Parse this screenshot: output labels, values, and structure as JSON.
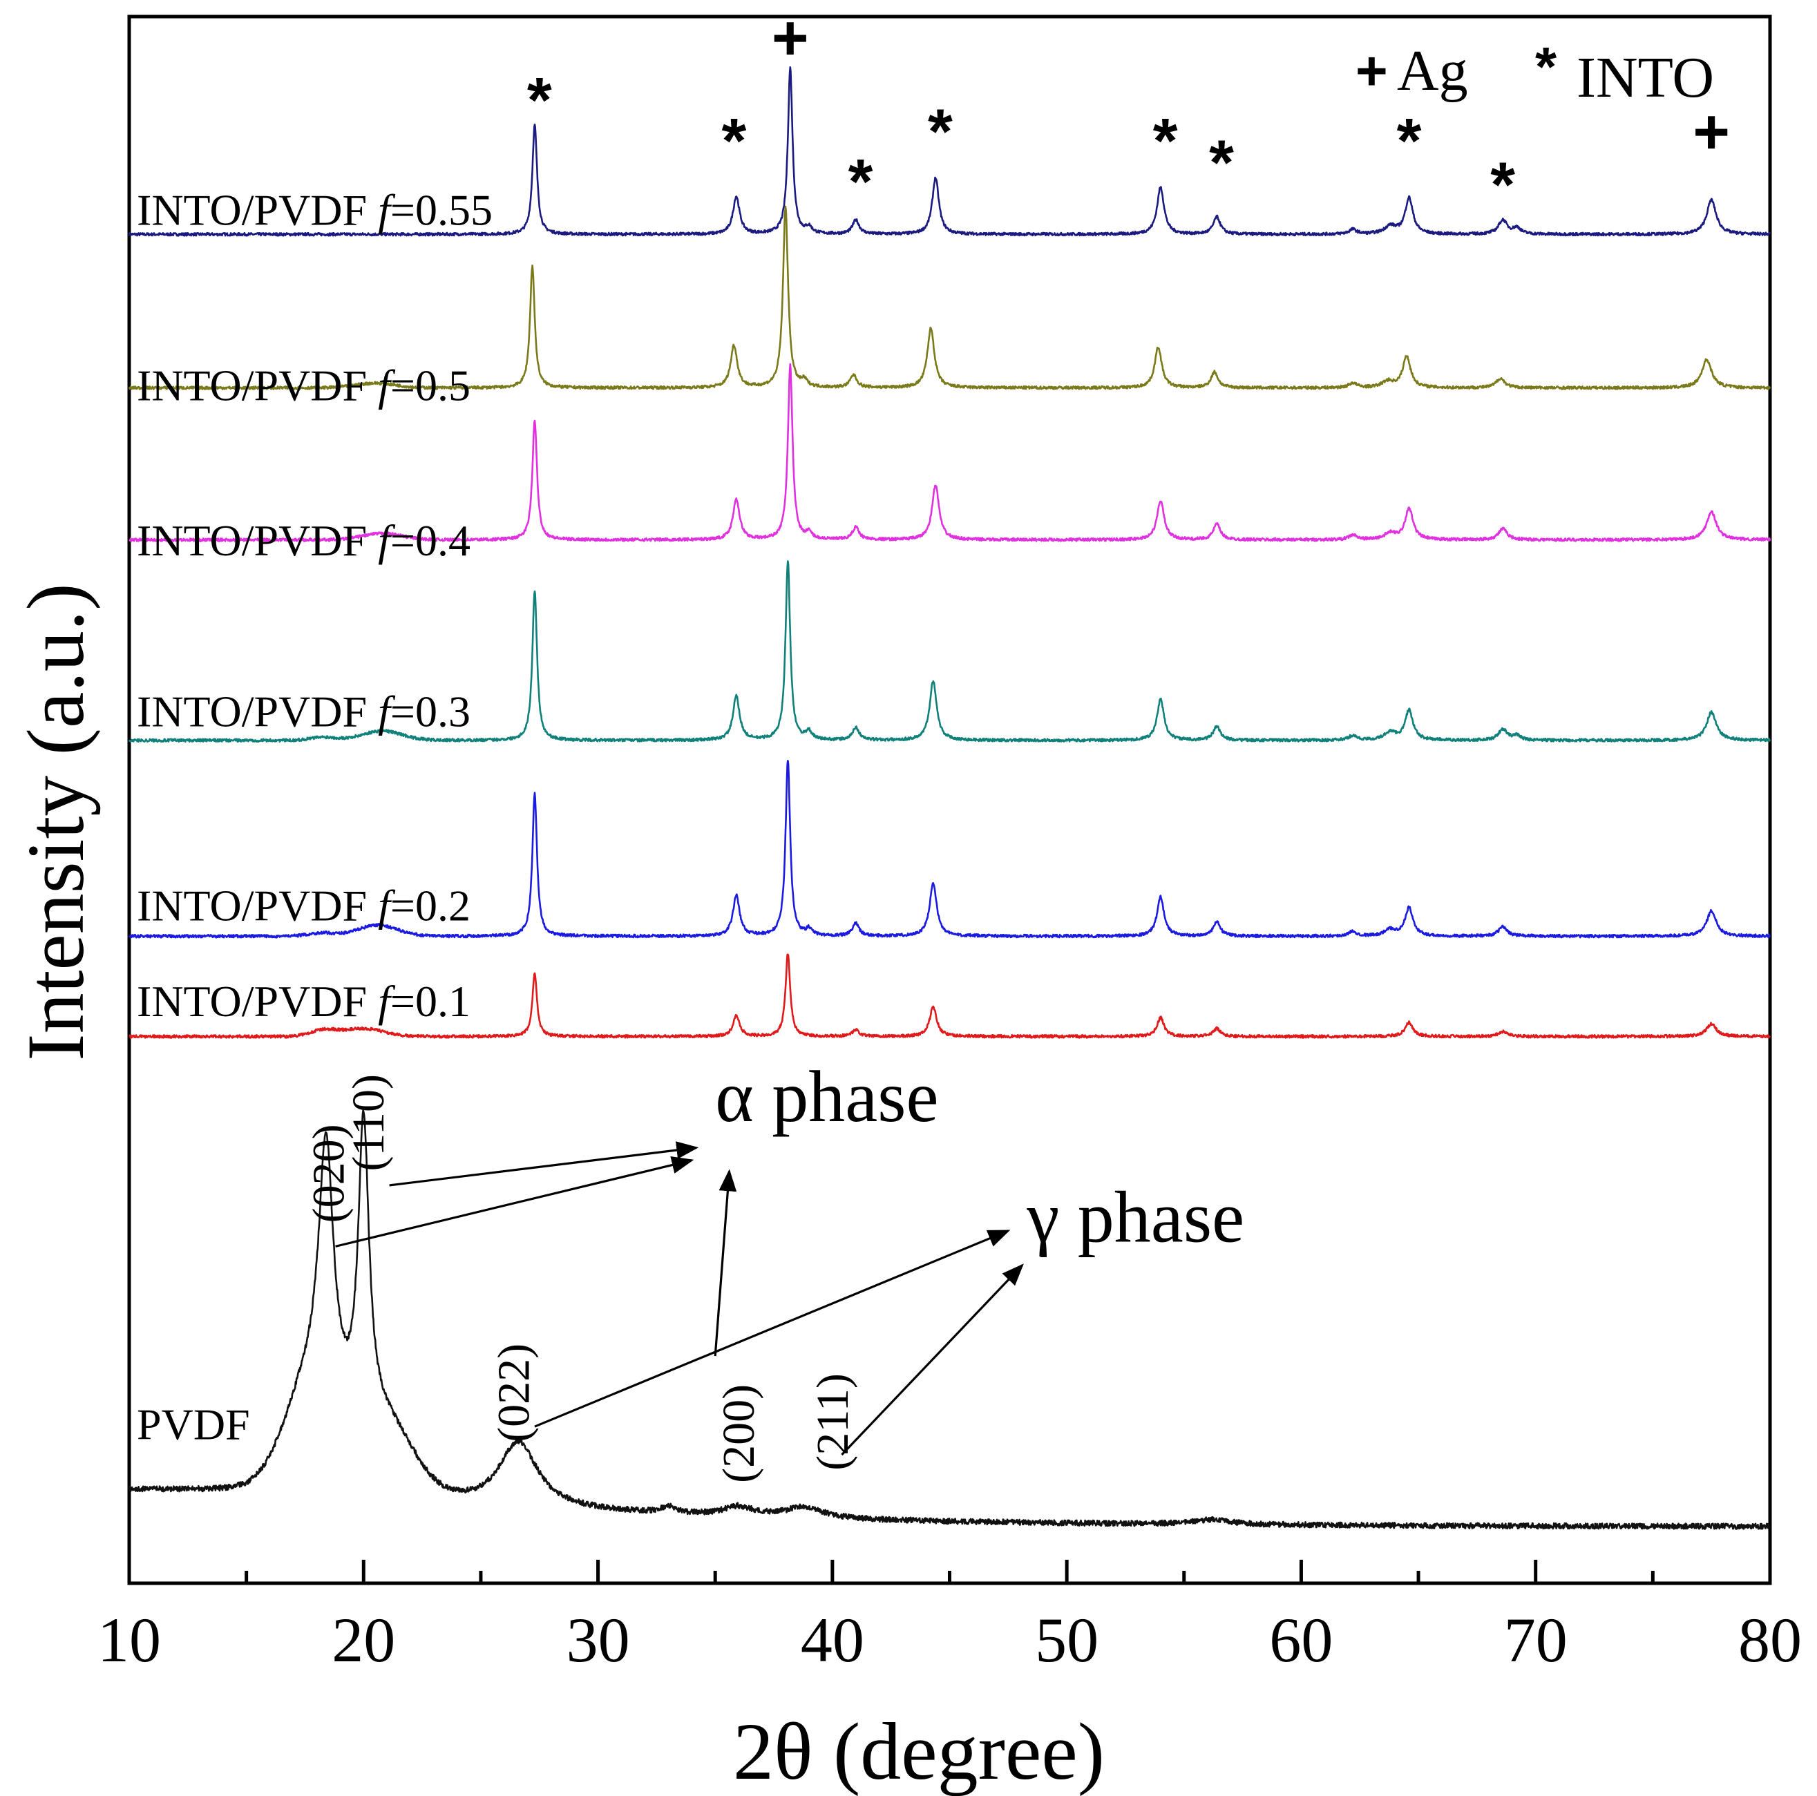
{
  "chart_data": {
    "type": "line",
    "title": "",
    "xlabel": "2θ (degree)",
    "ylabel": "Intensity (a.u.)",
    "xlim": [
      10,
      80
    ],
    "ylim": [
      0,
      100
    ],
    "xticks": [
      10,
      20,
      30,
      40,
      50,
      60,
      70,
      80
    ],
    "xticks_minor": [
      15,
      25,
      35,
      45,
      55,
      65,
      75
    ],
    "grid": false,
    "legend": {
      "position": "top-right",
      "entries": [
        {
          "symbol": "+",
          "label": "Ag"
        },
        {
          "symbol": "*",
          "label": "INTO"
        }
      ]
    },
    "series": [
      {
        "name": "INTO/PVDF f=0.55",
        "prefix": "INTO/PVDF ",
        "f_symbol": "f",
        "f_value": "=0.55",
        "color": "#1a1a80",
        "baseline": 86.1,
        "scale": 1.0,
        "peaks": [
          [
            27.3,
            7.0,
            0.12
          ],
          [
            35.9,
            2.4,
            0.17
          ],
          [
            38.2,
            10.6,
            0.12
          ],
          [
            39.0,
            0.4,
            0.15
          ],
          [
            41.0,
            0.9,
            0.17
          ],
          [
            44.4,
            3.6,
            0.17
          ],
          [
            54.0,
            3.0,
            0.18
          ],
          [
            56.4,
            1.1,
            0.18
          ],
          [
            62.2,
            0.3,
            0.2
          ],
          [
            63.8,
            0.5,
            0.3
          ],
          [
            64.6,
            2.3,
            0.2
          ],
          [
            68.6,
            0.9,
            0.22
          ],
          [
            69.2,
            0.4,
            0.2
          ],
          [
            77.5,
            2.2,
            0.24
          ]
        ],
        "broad": []
      },
      {
        "name": "INTO/PVDF f=0.5",
        "prefix": "INTO/PVDF ",
        "f_symbol": "f",
        "f_value": "=0.5",
        "color": "#7a7a1a",
        "baseline": 76.3,
        "scale": 1.0,
        "peaks": [
          [
            27.2,
            7.8,
            0.12
          ],
          [
            35.8,
            2.7,
            0.17
          ],
          [
            38.0,
            11.5,
            0.13
          ],
          [
            38.8,
            0.4,
            0.15
          ],
          [
            40.9,
            0.8,
            0.17
          ],
          [
            44.2,
            3.8,
            0.18
          ],
          [
            53.9,
            2.6,
            0.18
          ],
          [
            56.3,
            1.0,
            0.18
          ],
          [
            62.2,
            0.3,
            0.2
          ],
          [
            63.7,
            0.4,
            0.3
          ],
          [
            64.5,
            2.0,
            0.2
          ],
          [
            68.5,
            0.6,
            0.22
          ],
          [
            77.3,
            1.8,
            0.25
          ]
        ],
        "broad": [
          [
            20.5,
            0.3,
            1.2
          ]
        ]
      },
      {
        "name": "INTO/PVDF f=0.4",
        "prefix": "INTO/PVDF ",
        "f_symbol": "f",
        "f_value": "=0.4",
        "color": "#e030e0",
        "baseline": 66.6,
        "scale": 1.0,
        "peaks": [
          [
            27.3,
            7.6,
            0.12
          ],
          [
            35.9,
            2.6,
            0.17
          ],
          [
            38.2,
            11.1,
            0.12
          ],
          [
            39.0,
            0.4,
            0.15
          ],
          [
            41.0,
            0.8,
            0.17
          ],
          [
            44.4,
            3.5,
            0.18
          ],
          [
            54.0,
            2.5,
            0.18
          ],
          [
            56.4,
            1.0,
            0.18
          ],
          [
            62.2,
            0.3,
            0.2
          ],
          [
            63.8,
            0.4,
            0.3
          ],
          [
            64.6,
            2.0,
            0.2
          ],
          [
            68.6,
            0.7,
            0.22
          ],
          [
            77.5,
            1.8,
            0.25
          ]
        ],
        "broad": [
          [
            20.8,
            0.4,
            1.2
          ]
        ]
      },
      {
        "name": "INTO/PVDF f=0.3",
        "prefix": "INTO/PVDF ",
        "f_symbol": "f",
        "f_value": "=0.3",
        "color": "#10807a",
        "baseline": 53.8,
        "scale": 1.0,
        "peaks": [
          [
            27.3,
            9.6,
            0.12
          ],
          [
            35.9,
            2.8,
            0.17
          ],
          [
            38.1,
            11.4,
            0.12
          ],
          [
            39.0,
            0.5,
            0.15
          ],
          [
            41.0,
            0.8,
            0.17
          ],
          [
            44.3,
            3.8,
            0.18
          ],
          [
            54.0,
            2.6,
            0.18
          ],
          [
            56.4,
            0.9,
            0.18
          ],
          [
            62.2,
            0.3,
            0.2
          ],
          [
            63.8,
            0.5,
            0.3
          ],
          [
            64.6,
            1.9,
            0.2
          ],
          [
            68.6,
            0.7,
            0.22
          ],
          [
            69.2,
            0.3,
            0.2
          ],
          [
            77.5,
            1.8,
            0.25
          ]
        ],
        "broad": [
          [
            20.8,
            0.6,
            1.2
          ],
          [
            18.3,
            0.2,
            0.8
          ]
        ]
      },
      {
        "name": "INTO/PVDF f=0.2",
        "prefix": "INTO/PVDF ",
        "f_symbol": "f",
        "f_value": "=0.2",
        "color": "#1a1ae0",
        "baseline": 41.3,
        "scale": 1.0,
        "peaks": [
          [
            27.3,
            9.1,
            0.12
          ],
          [
            35.9,
            2.6,
            0.17
          ],
          [
            38.1,
            11.2,
            0.12
          ],
          [
            39.0,
            0.4,
            0.15
          ],
          [
            41.0,
            0.8,
            0.17
          ],
          [
            44.3,
            3.4,
            0.18
          ],
          [
            54.0,
            2.5,
            0.18
          ],
          [
            56.4,
            0.9,
            0.18
          ],
          [
            62.2,
            0.3,
            0.2
          ],
          [
            63.8,
            0.4,
            0.3
          ],
          [
            64.6,
            1.8,
            0.2
          ],
          [
            68.6,
            0.6,
            0.22
          ],
          [
            77.5,
            1.6,
            0.25
          ]
        ],
        "broad": [
          [
            20.6,
            0.7,
            1.2
          ],
          [
            18.2,
            0.2,
            0.8
          ]
        ]
      },
      {
        "name": "INTO/PVDF f=0.1",
        "prefix": "INTO/PVDF ",
        "f_symbol": "f",
        "f_value": "=0.1",
        "color": "#e01a1a",
        "baseline": 34.9,
        "scale": 1.0,
        "peaks": [
          [
            27.3,
            4.0,
            0.12
          ],
          [
            35.9,
            1.3,
            0.17
          ],
          [
            38.1,
            5.3,
            0.12
          ],
          [
            41.0,
            0.4,
            0.17
          ],
          [
            44.3,
            1.9,
            0.18
          ],
          [
            54.0,
            1.2,
            0.18
          ],
          [
            56.4,
            0.5,
            0.18
          ],
          [
            64.6,
            0.9,
            0.2
          ],
          [
            68.6,
            0.3,
            0.22
          ],
          [
            77.5,
            0.8,
            0.25
          ]
        ],
        "broad": [
          [
            20.0,
            0.5,
            1.2
          ],
          [
            18.3,
            0.4,
            0.8
          ]
        ]
      },
      {
        "name": "PVDF",
        "prefix": "PVDF",
        "f_symbol": "",
        "f_value": "",
        "color": "#111111",
        "baseline": 3.6,
        "scale": 1.0,
        "decay": [
          16.0,
          11.0
        ],
        "peaks": [
          [
            18.4,
            16.0,
            0.38
          ],
          [
            20.0,
            19.0,
            0.28
          ],
          [
            26.6,
            4.2,
            1.0
          ],
          [
            33.0,
            0.4,
            0.4
          ],
          [
            36.0,
            0.6,
            0.8
          ],
          [
            38.8,
            0.7,
            1.0
          ],
          [
            56.2,
            0.3,
            1.0
          ]
        ],
        "broad": [
          [
            17.8,
            6.5,
            1.6
          ],
          [
            20.8,
            4.5,
            1.8
          ]
        ]
      }
    ],
    "markers": [
      {
        "symbol": "*",
        "x": 27.5,
        "y": 94.6
      },
      {
        "symbol": "*",
        "x": 35.8,
        "y": 92.0
      },
      {
        "symbol": "+",
        "x": 38.2,
        "y": 98.6
      },
      {
        "symbol": "*",
        "x": 41.2,
        "y": 89.4
      },
      {
        "symbol": "*",
        "x": 44.6,
        "y": 92.6
      },
      {
        "symbol": "*",
        "x": 54.2,
        "y": 92.0
      },
      {
        "symbol": "*",
        "x": 56.6,
        "y": 90.6
      },
      {
        "symbol": "*",
        "x": 64.6,
        "y": 92.0
      },
      {
        "symbol": "*",
        "x": 68.6,
        "y": 89.2
      },
      {
        "symbol": "+",
        "x": 77.5,
        "y": 92.6
      }
    ],
    "annotations": {
      "miller": [
        {
          "label": "(020)",
          "x": 18.5,
          "y": 23.0
        },
        {
          "label": "(110)",
          "x": 20.2,
          "y": 26.3
        },
        {
          "label": "(022)",
          "x": 26.4,
          "y": 9.0
        },
        {
          "label": "(200)",
          "x": 36.0,
          "y": 6.4
        },
        {
          "label": "(211)",
          "x": 40.0,
          "y": 7.2
        }
      ],
      "phases": [
        {
          "label": "α phase",
          "x": 35.0,
          "y": 29.5
        },
        {
          "label": "γ phase",
          "x": 48.3,
          "y": 21.8
        }
      ],
      "arrows": [
        {
          "from": [
            21.1,
            25.4
          ],
          "to": [
            34.2,
            27.8
          ]
        },
        {
          "from": [
            18.8,
            21.5
          ],
          "to": [
            34.0,
            27.0
          ]
        },
        {
          "from": [
            35.0,
            14.5
          ],
          "to": [
            35.6,
            26.3
          ]
        },
        {
          "from": [
            27.3,
            10.0
          ],
          "to": [
            47.5,
            22.5
          ]
        },
        {
          "from": [
            40.4,
            8.2
          ],
          "to": [
            48.1,
            20.3
          ]
        }
      ]
    }
  }
}
